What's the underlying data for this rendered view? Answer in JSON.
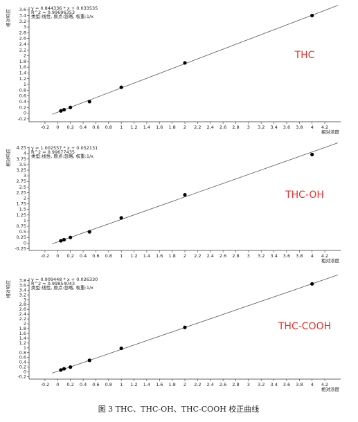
{
  "chart_data": [
    {
      "type": "scatter",
      "label": "THC",
      "label_color": "#e8322c",
      "equation": "y = 0.844336 * x + 0.033535",
      "r2": "R^2 = 0.99696353",
      "fit_type": "类型:线性, 原点:忽略, 权重:1/x",
      "fit": {
        "slope": 0.844336,
        "intercept": 0.033535
      },
      "x_label": "相对浓度",
      "y_label": "相对响应",
      "color": "#000000",
      "x": [
        0.05,
        0.1,
        0.2,
        0.5,
        1,
        2,
        4
      ],
      "values": [
        0.08,
        0.12,
        0.2,
        0.4,
        0.9,
        1.75,
        3.4
      ],
      "xlim": [
        -0.45,
        4.45
      ],
      "ylim": [
        -0.3,
        3.7
      ],
      "xticks": [
        -0.2,
        0,
        0.2,
        0.4,
        0.6,
        0.8,
        1,
        1.2,
        1.4,
        1.6,
        1.8,
        2,
        2.2,
        2.4,
        2.6,
        2.8,
        3,
        3.2,
        3.4,
        3.6,
        3.8,
        4,
        4.2
      ],
      "yticks": [
        -0.2,
        0,
        0.2,
        0.4,
        0.6,
        0.8,
        1,
        1.2,
        1.4,
        1.6,
        1.8,
        2,
        2.2,
        2.4,
        2.6,
        2.8,
        3,
        3.2,
        3.4,
        3.6
      ]
    },
    {
      "type": "scatter",
      "label": "THC-OH",
      "label_color": "#e8322c",
      "equation": "y = 1.002557 * x + 0.052131",
      "r2": "R^2 = 0.99677435",
      "fit_type": "类型:线性, 原点:忽略, 权重:1/x",
      "fit": {
        "slope": 1.002557,
        "intercept": 0.052131
      },
      "x_label": "相对浓度",
      "y_label": "相对响应",
      "color": "#000000",
      "x": [
        0.05,
        0.1,
        0.2,
        0.5,
        1,
        2,
        4
      ],
      "values": [
        0.1,
        0.15,
        0.25,
        0.5,
        1.12,
        2.15,
        3.95
      ],
      "xlim": [
        -0.45,
        4.45
      ],
      "ylim": [
        -0.33,
        4.3
      ],
      "xticks": [
        -0.2,
        0,
        0.2,
        0.4,
        0.6,
        0.8,
        1,
        1.2,
        1.4,
        1.6,
        1.8,
        2,
        2.2,
        2.4,
        2.6,
        2.8,
        3,
        3.2,
        3.4,
        3.6,
        3.8,
        4,
        4.2
      ],
      "yticks": [
        -0.25,
        0,
        0.25,
        0.5,
        0.75,
        1,
        1.25,
        1.5,
        1.75,
        2,
        2.25,
        2.5,
        2.75,
        3,
        3.25,
        3.5,
        3.75,
        4,
        4.25
      ]
    },
    {
      "type": "scatter",
      "label": "THC-COOH",
      "label_color": "#e8322c",
      "equation": "y = 0.909448 * x + 0.026330",
      "r2": "R^2 = 0.99854043",
      "fit_type": "类型:线性, 原点:忽略, 权重:1/x",
      "fit": {
        "slope": 0.909448,
        "intercept": 0.02633
      },
      "x_label": "相对浓度",
      "y_label": "相对响应",
      "color": "#000000",
      "x": [
        0.05,
        0.1,
        0.2,
        0.5,
        1,
        2,
        4
      ],
      "values": [
        0.08,
        0.13,
        0.2,
        0.48,
        0.98,
        1.85,
        3.66
      ],
      "xlim": [
        -0.45,
        4.45
      ],
      "ylim": [
        -0.3,
        3.9
      ],
      "xticks": [
        -0.2,
        0,
        0.2,
        0.4,
        0.6,
        0.8,
        1,
        1.2,
        1.4,
        1.6,
        1.8,
        2,
        2.2,
        2.4,
        2.6,
        2.8,
        3,
        3.2,
        3.4,
        3.6,
        3.8,
        4,
        4.2
      ],
      "yticks": [
        -0.2,
        0,
        0.2,
        0.4,
        0.6,
        0.8,
        1,
        1.2,
        1.4,
        1.6,
        1.8,
        2,
        2.2,
        2.4,
        2.6,
        2.8,
        3,
        3.2,
        3.4,
        3.6,
        3.8
      ]
    }
  ],
  "caption": "图 3 THC、THC-OH、THC-COOH 校正曲线"
}
